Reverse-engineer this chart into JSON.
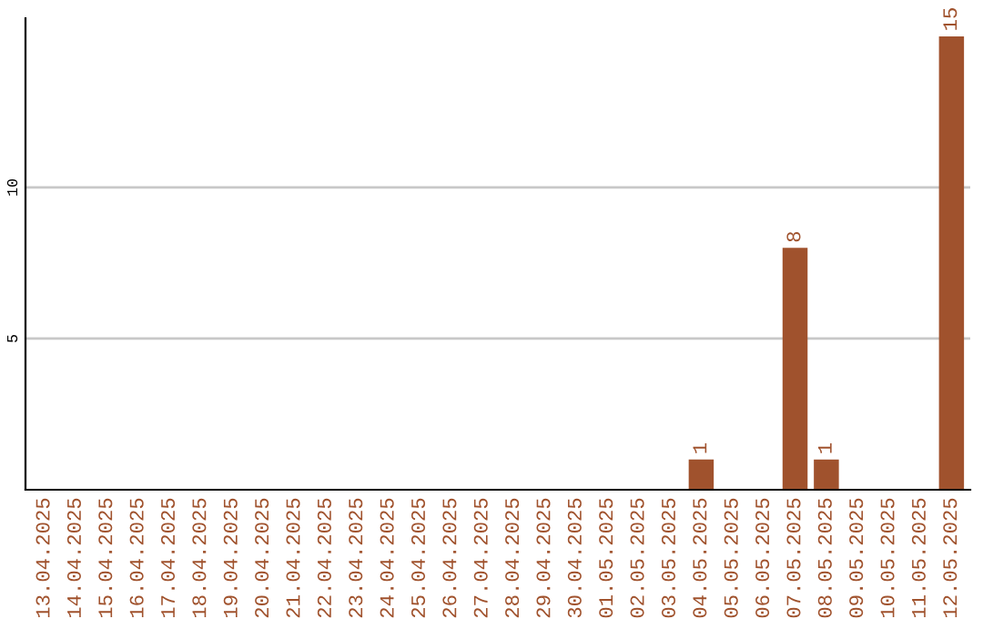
{
  "chart_data": {
    "type": "bar",
    "categories": [
      "13.04.2025",
      "14.04.2025",
      "15.04.2025",
      "16.04.2025",
      "17.04.2025",
      "18.04.2025",
      "19.04.2025",
      "20.04.2025",
      "21.04.2025",
      "22.04.2025",
      "23.04.2025",
      "24.04.2025",
      "25.04.2025",
      "26.04.2025",
      "27.04.2025",
      "28.04.2025",
      "29.04.2025",
      "30.04.2025",
      "01.05.2025",
      "02.05.2025",
      "03.05.2025",
      "04.05.2025",
      "05.05.2025",
      "06.05.2025",
      "07.05.2025",
      "08.05.2025",
      "09.05.2025",
      "10.05.2025",
      "11.05.2025",
      "12.05.2025"
    ],
    "values": [
      0,
      0,
      0,
      0,
      0,
      0,
      0,
      0,
      0,
      0,
      0,
      0,
      0,
      0,
      0,
      0,
      0,
      0,
      0,
      0,
      0,
      1,
      0,
      0,
      8,
      1,
      0,
      0,
      0,
      15
    ],
    "value_labels": [
      null,
      null,
      null,
      null,
      null,
      null,
      null,
      null,
      null,
      null,
      null,
      null,
      null,
      null,
      null,
      null,
      null,
      null,
      null,
      null,
      null,
      "1",
      null,
      null,
      "8",
      "1",
      null,
      null,
      null,
      "15"
    ],
    "color": "#a0522d",
    "ylim": [
      0,
      15.6
    ],
    "yticks": [
      5,
      10
    ],
    "grid": "y"
  }
}
